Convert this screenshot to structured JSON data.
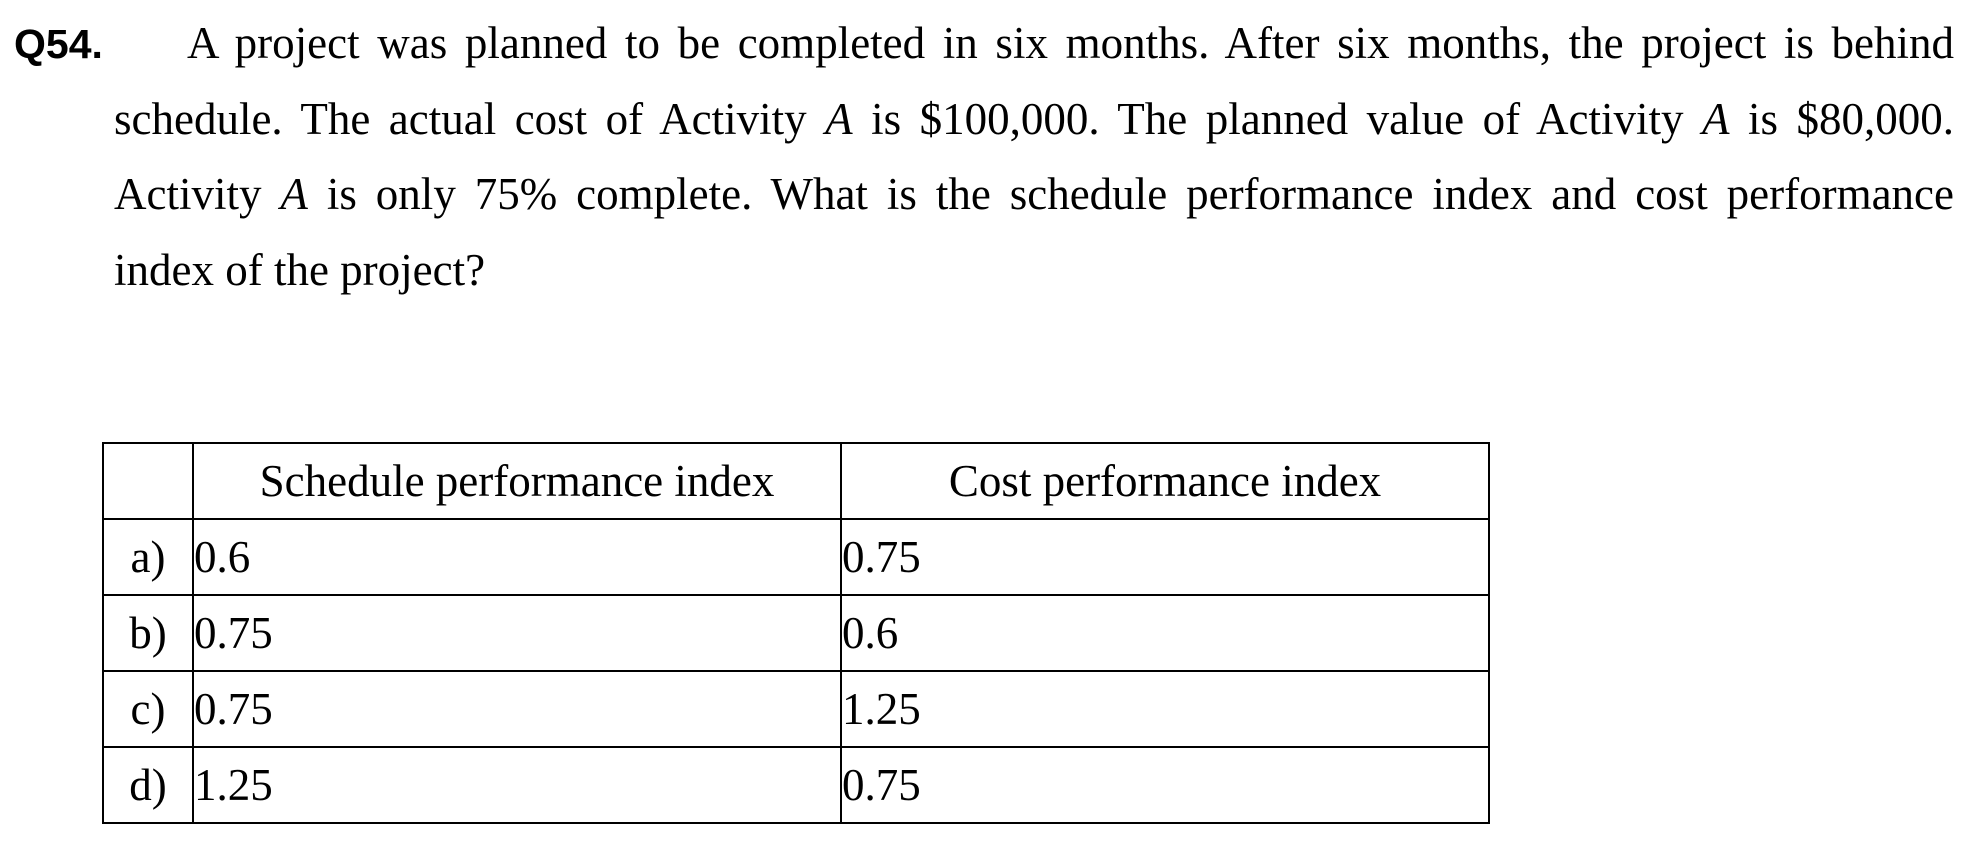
{
  "question": {
    "number": "Q54.",
    "text_parts": [
      "A project was planned to be completed in six months. After six months, the project is behind schedule. The actual cost of Activity ",
      "A",
      " is $100,000. The planned value of Activity ",
      "A",
      " is $80,000. Activity ",
      "A",
      " is only 75% complete. What is the schedule performance index and cost performance index of the project?"
    ]
  },
  "table": {
    "headers": [
      "Schedule performance index",
      "Cost performance index"
    ],
    "rows": [
      {
        "letter": "a)",
        "spi": "0.6",
        "cpi": "0.75"
      },
      {
        "letter": "b)",
        "spi": "0.75",
        "cpi": "0.6"
      },
      {
        "letter": "c)",
        "spi": "0.75",
        "cpi": "1.25"
      },
      {
        "letter": "d)",
        "spi": "1.25",
        "cpi": "0.75"
      }
    ]
  }
}
